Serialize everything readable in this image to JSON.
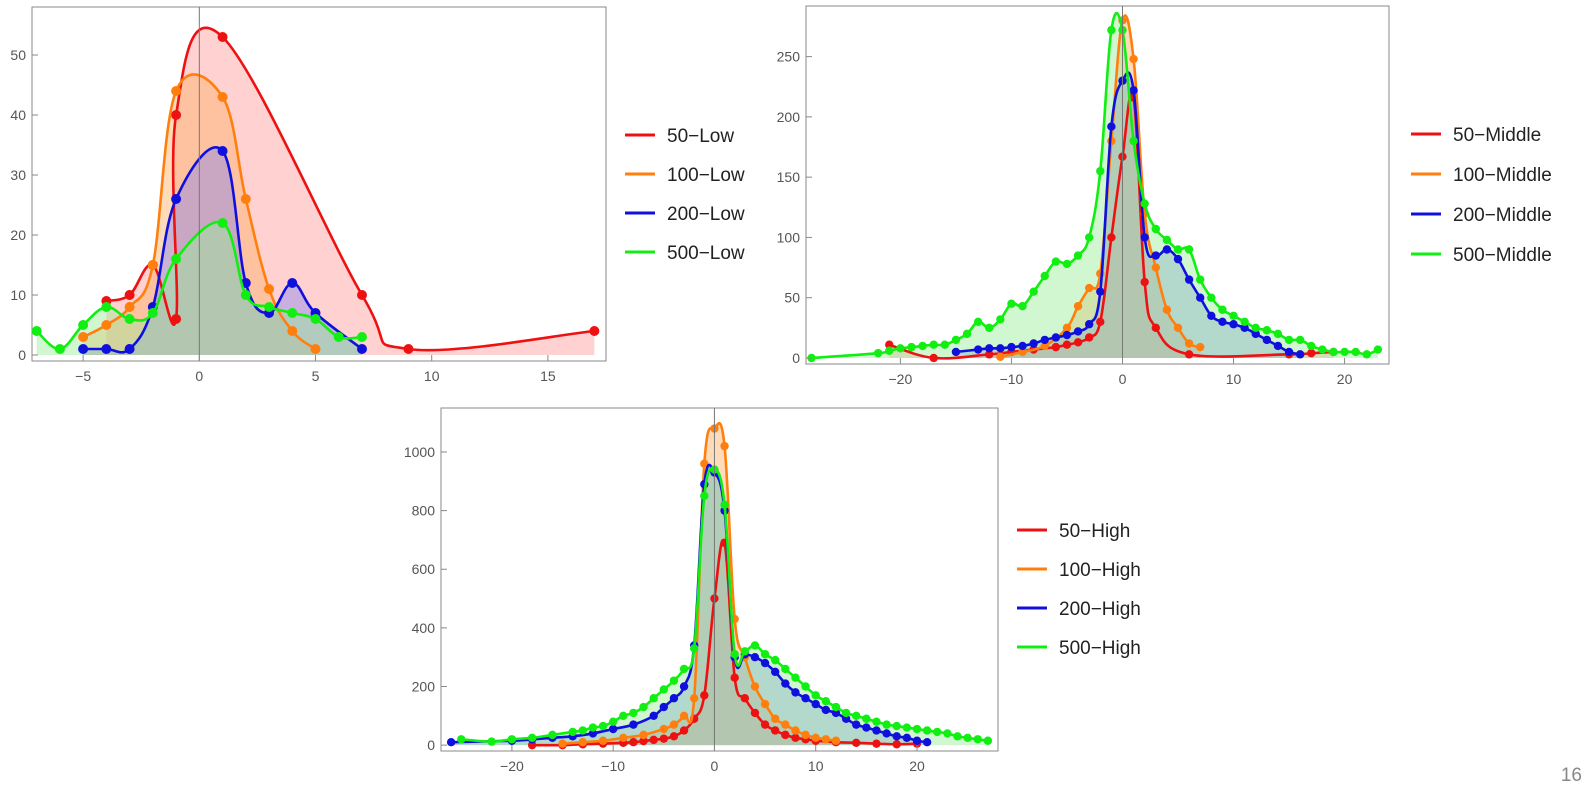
{
  "page": {
    "slide_number": "16"
  },
  "chart_data": [
    {
      "type": "area",
      "title": "",
      "xlabel": "",
      "ylabel": "",
      "xlim": [
        -7.2,
        17.5
      ],
      "ylim": [
        -1,
        58
      ],
      "xticks": [
        -5,
        0,
        5,
        10,
        15
      ],
      "yticks": [
        0,
        10,
        20,
        30,
        40,
        50
      ],
      "legend_position": "right",
      "series": [
        {
          "name": "50−Low",
          "color": "#ee1111",
          "fill": "#ff9999",
          "x": [
            -4,
            -3,
            -2,
            -1,
            -1,
            1,
            7,
            9,
            17
          ],
          "y": [
            9,
            10,
            15,
            6,
            40,
            53,
            10,
            1,
            4
          ]
        },
        {
          "name": "100−Low",
          "color": "#ff7f0e",
          "fill": "#ffb066",
          "x": [
            -5,
            -4,
            -3,
            -2,
            -1,
            1,
            2,
            3,
            4,
            5
          ],
          "y": [
            3,
            5,
            8,
            15,
            44,
            43,
            26,
            11,
            4,
            1
          ]
        },
        {
          "name": "200−Low",
          "color": "#1010dd",
          "fill": "#8888ee",
          "x": [
            -5,
            -4,
            -3,
            -2,
            -1,
            1,
            2,
            3,
            4,
            5,
            7
          ],
          "y": [
            1,
            1,
            1,
            8,
            26,
            34,
            12,
            7,
            12,
            7,
            1
          ]
        },
        {
          "name": "500−Low",
          "color": "#11ee11",
          "fill": "#99ee99",
          "x": [
            -7,
            -6,
            -5,
            -4,
            -3,
            -2,
            -1,
            1,
            2,
            3,
            4,
            5,
            6,
            7
          ],
          "y": [
            4,
            1,
            5,
            8,
            6,
            7,
            16,
            22,
            10,
            8,
            7,
            6,
            3,
            3
          ]
        }
      ]
    },
    {
      "type": "area",
      "title": "",
      "xlabel": "",
      "ylabel": "",
      "xlim": [
        -28.5,
        24
      ],
      "ylim": [
        -5,
        292
      ],
      "xticks": [
        -20,
        -10,
        0,
        10,
        20
      ],
      "yticks": [
        0,
        50,
        100,
        150,
        200,
        250
      ],
      "legend_position": "right",
      "series": [
        {
          "name": "50−Middle",
          "color": "#ee1111",
          "fill": "#ff9999",
          "x": [
            -21,
            -17,
            -12,
            -10,
            -8,
            -6,
            -5,
            -4,
            -3,
            -2,
            -1,
            0,
            1,
            2,
            3,
            6,
            15,
            17,
            19
          ],
          "y": [
            11,
            0,
            3,
            5,
            7,
            9,
            11,
            13,
            17,
            30,
            100,
            167,
            216,
            63,
            25,
            3,
            3,
            4,
            5
          ]
        },
        {
          "name": "100−Middle",
          "color": "#ff7f0e",
          "fill": "#ffb066",
          "x": [
            -11,
            -9,
            -7,
            -5,
            -4,
            -3,
            -2,
            -1,
            0,
            1,
            2,
            3,
            4,
            5,
            6,
            7
          ],
          "y": [
            1,
            5,
            10,
            25,
            43,
            58,
            70,
            180,
            280,
            248,
            120,
            75,
            40,
            25,
            12,
            9
          ]
        },
        {
          "name": "200−Middle",
          "color": "#1010dd",
          "fill": "#8888ee",
          "x": [
            -15,
            -13,
            -12,
            -11,
            -10,
            -9,
            -8,
            -7,
            -6,
            -5,
            -4,
            -3,
            -2,
            -1,
            0,
            1,
            2,
            3,
            4,
            5,
            6,
            7,
            8,
            9,
            10,
            11,
            12,
            13,
            14,
            15,
            16
          ],
          "y": [
            5,
            7,
            8,
            8,
            9,
            10,
            12,
            15,
            17,
            19,
            22,
            28,
            55,
            192,
            230,
            222,
            100,
            85,
            90,
            82,
            65,
            50,
            35,
            30,
            28,
            25,
            20,
            15,
            10,
            5,
            3
          ]
        },
        {
          "name": "500−Middle",
          "color": "#11ee11",
          "fill": "#99ee99",
          "x": [
            -28,
            -22,
            -21,
            -20,
            -19,
            -18,
            -17,
            -16,
            -15,
            -14,
            -13,
            -12,
            -11,
            -10,
            -9,
            -8,
            -7,
            -6,
            -5,
            -4,
            -3,
            -2,
            -1,
            0,
            1,
            2,
            3,
            4,
            5,
            6,
            7,
            8,
            9,
            10,
            11,
            12,
            13,
            14,
            15,
            16,
            17,
            18,
            19,
            20,
            21,
            22,
            23
          ],
          "y": [
            0,
            4,
            6,
            8,
            9,
            10,
            11,
            11,
            15,
            20,
            30,
            25,
            32,
            45,
            43,
            55,
            68,
            80,
            78,
            85,
            100,
            155,
            272,
            272,
            180,
            128,
            107,
            98,
            90,
            90,
            65,
            50,
            40,
            35,
            30,
            25,
            23,
            20,
            15,
            15,
            10,
            7,
            5,
            5,
            5,
            3,
            7
          ]
        }
      ]
    },
    {
      "type": "area",
      "title": "",
      "xlabel": "",
      "ylabel": "",
      "xlim": [
        -27,
        28
      ],
      "ylim": [
        -20,
        1150
      ],
      "xticks": [
        -20,
        -10,
        0,
        10,
        20
      ],
      "yticks": [
        0,
        200,
        400,
        600,
        800,
        1000
      ],
      "legend_position": "right",
      "series": [
        {
          "name": "50−High",
          "color": "#ee1111",
          "fill": "#ff9999",
          "x": [
            -18,
            -15,
            -13,
            -11,
            -9,
            -8,
            -7,
            -6,
            -5,
            -4,
            -3,
            -2,
            -1,
            0,
            1,
            2,
            3,
            4,
            5,
            6,
            7,
            8,
            9,
            10,
            12,
            14,
            16,
            18,
            20
          ],
          "y": [
            0,
            0,
            3,
            5,
            8,
            10,
            14,
            18,
            22,
            30,
            50,
            90,
            170,
            500,
            690,
            230,
            160,
            110,
            70,
            50,
            35,
            25,
            20,
            15,
            10,
            8,
            5,
            3,
            5
          ]
        },
        {
          "name": "100−High",
          "color": "#ff7f0e",
          "fill": "#ffb066",
          "x": [
            -15,
            -13,
            -11,
            -9,
            -7,
            -5,
            -4,
            -3,
            -2,
            -1,
            0,
            1,
            2,
            3,
            4,
            5,
            6,
            7,
            8,
            9,
            10,
            11,
            12
          ],
          "y": [
            5,
            10,
            15,
            25,
            35,
            55,
            70,
            100,
            160,
            960,
            1080,
            1020,
            430,
            300,
            200,
            140,
            90,
            70,
            50,
            35,
            25,
            20,
            15
          ]
        },
        {
          "name": "200−High",
          "color": "#1010dd",
          "fill": "#8888ee",
          "x": [
            -26,
            -20,
            -18,
            -16,
            -14,
            -12,
            -10,
            -8,
            -6,
            -5,
            -4,
            -3,
            -2,
            -1,
            0,
            1,
            2,
            3,
            4,
            5,
            6,
            7,
            8,
            9,
            10,
            11,
            12,
            13,
            14,
            15,
            16,
            17,
            18,
            19,
            20,
            21
          ],
          "y": [
            10,
            15,
            20,
            25,
            30,
            40,
            55,
            70,
            100,
            130,
            160,
            200,
            340,
            890,
            930,
            800,
            300,
            310,
            300,
            280,
            250,
            210,
            180,
            160,
            140,
            120,
            110,
            90,
            70,
            60,
            50,
            40,
            30,
            25,
            15,
            10
          ]
        },
        {
          "name": "500−High",
          "color": "#11ee11",
          "fill": "#99ee99",
          "x": [
            -25,
            -22,
            -20,
            -18,
            -16,
            -14,
            -13,
            -12,
            -11,
            -10,
            -9,
            -8,
            -7,
            -6,
            -5,
            -4,
            -3,
            -2,
            -1,
            0,
            1,
            2,
            3,
            4,
            5,
            6,
            7,
            8,
            9,
            10,
            11,
            12,
            13,
            14,
            15,
            16,
            17,
            18,
            19,
            20,
            21,
            22,
            23,
            24,
            25,
            26,
            27
          ],
          "y": [
            20,
            12,
            20,
            25,
            35,
            45,
            50,
            60,
            65,
            80,
            100,
            110,
            130,
            160,
            190,
            220,
            260,
            330,
            850,
            940,
            820,
            310,
            320,
            340,
            310,
            290,
            260,
            230,
            200,
            170,
            150,
            130,
            110,
            100,
            90,
            80,
            70,
            65,
            60,
            55,
            50,
            45,
            40,
            30,
            25,
            20,
            15
          ]
        }
      ]
    }
  ]
}
